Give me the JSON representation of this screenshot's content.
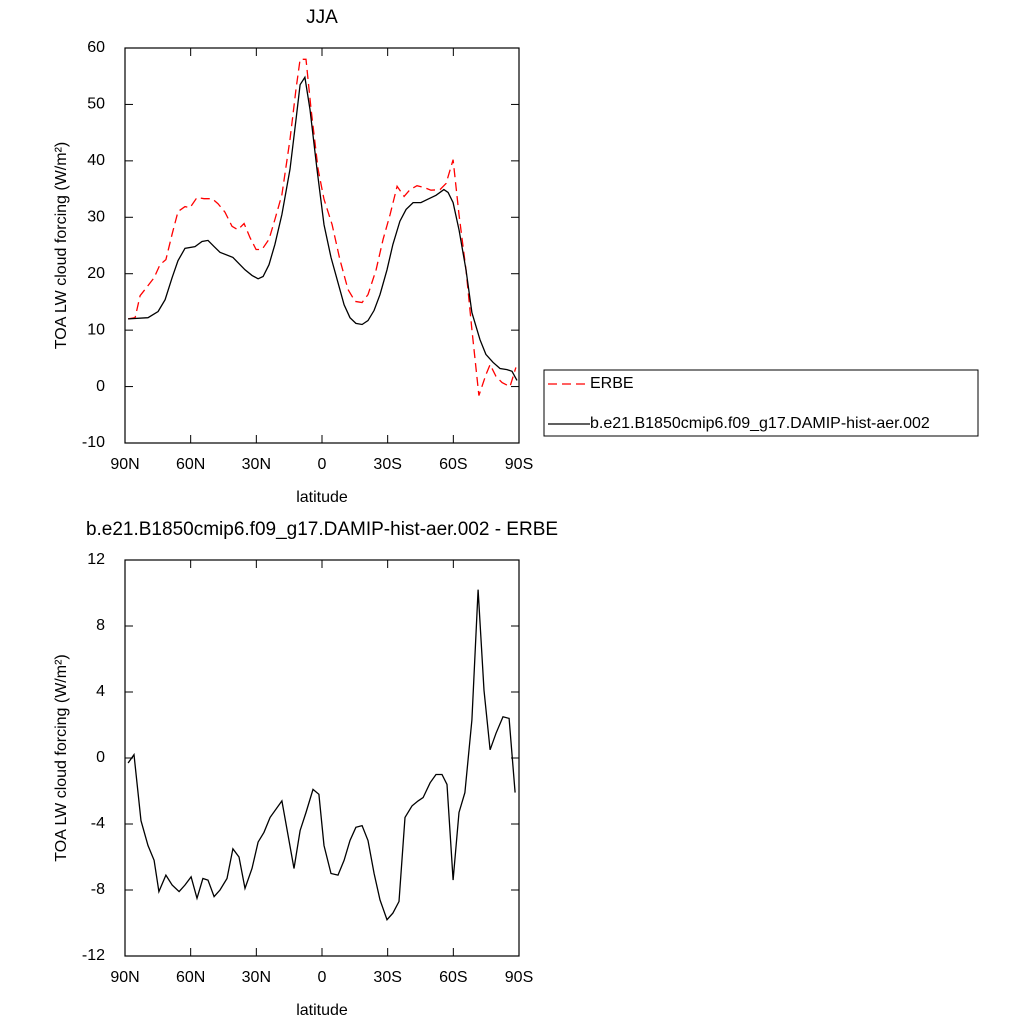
{
  "chart_data": [
    {
      "type": "line",
      "title": "JJA",
      "xlabel": "latitude",
      "ylabel": "TOA LW cloud forcing (W/m²)",
      "xlim": [
        90,
        -90
      ],
      "xticks": [
        {
          "value": 90,
          "label": "90N"
        },
        {
          "value": 60,
          "label": "60N"
        },
        {
          "value": 30,
          "label": "30N"
        },
        0,
        {
          "value": -30,
          "label": "30S"
        },
        {
          "value": -60,
          "label": "60S"
        },
        {
          "value": -90,
          "label": "90S"
        }
      ],
      "ylim": [
        -10,
        60
      ],
      "yticks": [
        -10,
        0,
        10,
        20,
        30,
        40,
        50,
        60
      ],
      "legend": "right",
      "series": [
        {
          "name": "ERBE",
          "color": "#ff0000",
          "dashed": true,
          "x": [
            88.6,
            85.4,
            83.1,
            79.5,
            76.7,
            74.0,
            71.3,
            68.5,
            65.8,
            62.6,
            60.3,
            57.1,
            53.9,
            50.2,
            47.5,
            44.3,
            41.1,
            38.4,
            35.6,
            32.9,
            30.1,
            27.4,
            24.2,
            21.5,
            18.3,
            14.6,
            11.9,
            10.0,
            7.3,
            5.0,
            1.8,
            -0.9,
            -4.6,
            -8.2,
            -11.9,
            -15.1,
            -18.3,
            -21.0,
            -24.7,
            -27.9,
            -31.1,
            -34.3,
            -37.5,
            -40.2,
            -43.4,
            -46.6,
            -49.8,
            -53.9,
            -56.7,
            -59.9,
            -62.6,
            -65.8,
            -68.5,
            -71.7,
            -74.9,
            -76.8,
            -79.5,
            -82.3,
            -85.9,
            -88.6
          ],
          "values": [
            12,
            12.2,
            16.1,
            17.9,
            19.3,
            21.6,
            22.5,
            27,
            31,
            31.9,
            31.7,
            33.5,
            33.3,
            33.3,
            32.4,
            30.9,
            28.4,
            27.8,
            28.9,
            26.4,
            24.3,
            24.3,
            26.1,
            29.6,
            34,
            43.8,
            52.7,
            58,
            58,
            49.1,
            38.5,
            33.2,
            28.7,
            22.5,
            17.2,
            15.1,
            14.9,
            16.3,
            20.7,
            26.1,
            30.5,
            35.5,
            33.7,
            34.9,
            35.6,
            35.3,
            34.8,
            34.9,
            36,
            40.2,
            30.5,
            20.7,
            10.1,
            -1.6,
            2.1,
            3.9,
            1.8,
            0.7,
            0,
            3.4
          ]
        },
        {
          "name": "b.e21.B1850cmip6.f09_g17.DAMIP-hist-aer.002",
          "color": "#000000",
          "dashed": false,
          "x": [
            88.6,
            79.5,
            74.9,
            71.7,
            68.5,
            65.8,
            62.6,
            58.0,
            54.8,
            52.1,
            49.3,
            46.6,
            40.7,
            35.2,
            32.0,
            29.2,
            26.9,
            24.2,
            21.5,
            18.3,
            14.6,
            11.9,
            10.0,
            7.8,
            5.5,
            2.3,
            -0.9,
            -4.1,
            -7.3,
            -10.1,
            -12.8,
            -15.5,
            -18.3,
            -21.0,
            -23.8,
            -26.5,
            -29.7,
            -32.4,
            -35.6,
            -38.4,
            -41.6,
            -45.2,
            -48.4,
            -52.1,
            -55.7,
            -57.6,
            -59.9,
            -62.6,
            -65.8,
            -68.5,
            -72.2,
            -74.9,
            -78.1,
            -81.3,
            -84.5,
            -86.8,
            -89.1
          ],
          "values": [
            12.0,
            12.2,
            13.3,
            15.4,
            19.3,
            22.3,
            24.5,
            24.8,
            25.7,
            25.9,
            24.8,
            23.8,
            22.9,
            20.7,
            19.7,
            19.1,
            19.5,
            21.6,
            25.2,
            30.5,
            38.5,
            47.3,
            53.5,
            54.8,
            49.1,
            38.5,
            28.7,
            22.9,
            18.4,
            14.5,
            12.2,
            11.2,
            11.0,
            11.7,
            13.5,
            16.3,
            20.7,
            25.2,
            29.3,
            31.4,
            32.6,
            32.6,
            33.2,
            33.9,
            34.9,
            34.4,
            32.6,
            27.8,
            20.7,
            13.1,
            8.3,
            5.7,
            4.3,
            3.2,
            3.0,
            2.7,
            1.1
          ]
        }
      ]
    },
    {
      "type": "line",
      "title": "b.e21.B1850cmip6.f09_g17.DAMIP-hist-aer.002 - ERBE",
      "xlabel": "latitude",
      "ylabel": "TOA LW cloud forcing (W/m²)",
      "xlim": [
        90,
        -90
      ],
      "xticks": [
        {
          "value": 90,
          "label": "90N"
        },
        {
          "value": 60,
          "label": "60N"
        },
        {
          "value": 30,
          "label": "30N"
        },
        0,
        {
          "value": -30,
          "label": "30S"
        },
        {
          "value": -60,
          "label": "60S"
        },
        {
          "value": -90,
          "label": "90S"
        }
      ],
      "ylim": [
        -12,
        12
      ],
      "yticks": [
        -12,
        -8,
        -4,
        0,
        4,
        8,
        12
      ],
      "series": [
        {
          "color": "#000000",
          "dashed": false,
          "x": [
            88.6,
            85.9,
            82.7,
            79.5,
            76.7,
            74.5,
            71.3,
            68.5,
            65.3,
            62.6,
            59.8,
            57.1,
            54.4,
            52.1,
            49.3,
            46.6,
            43.4,
            40.7,
            37.9,
            35.2,
            32.0,
            29.2,
            26.5,
            23.7,
            18.3,
            15.5,
            12.8,
            10.0,
            7.3,
            4.1,
            1.4,
            -0.9,
            -4.1,
            -7.3,
            -10.1,
            -12.8,
            -15.5,
            -18.3,
            -21.0,
            -23.8,
            -26.5,
            -29.7,
            -32.4,
            -35.2,
            -37.9,
            -41.1,
            -43.9,
            -46.2,
            -49.4,
            -52.1,
            -54.8,
            -57.1,
            -59.9,
            -62.6,
            -65.3,
            -68.5,
            -71.3,
            -74.0,
            -76.8,
            -79.5,
            -82.7,
            -85.5,
            -88.2
          ],
          "values": [
            -0.3,
            0.2,
            -3.8,
            -5.3,
            -6.2,
            -8.1,
            -7.1,
            -7.7,
            -8.1,
            -7.7,
            -7.2,
            -8.5,
            -7.3,
            -7.4,
            -8.4,
            -8.0,
            -7.3,
            -5.5,
            -6.0,
            -7.9,
            -6.7,
            -5.1,
            -4.5,
            -3.6,
            -2.6,
            -4.7,
            -6.7,
            -4.4,
            -3.3,
            -1.9,
            -2.2,
            -5.3,
            -7.0,
            -7.1,
            -6.2,
            -5.0,
            -4.2,
            -4.1,
            -5.0,
            -7.0,
            -8.6,
            -9.8,
            -9.4,
            -8.7,
            -3.6,
            -2.9,
            -2.6,
            -2.4,
            -1.5,
            -1.0,
            -1.0,
            -1.6,
            -7.4,
            -3.3,
            -2.1,
            2.3,
            10.2,
            4.1,
            0.5,
            1.5,
            2.5,
            2.4,
            -2.1
          ]
        }
      ]
    }
  ]
}
